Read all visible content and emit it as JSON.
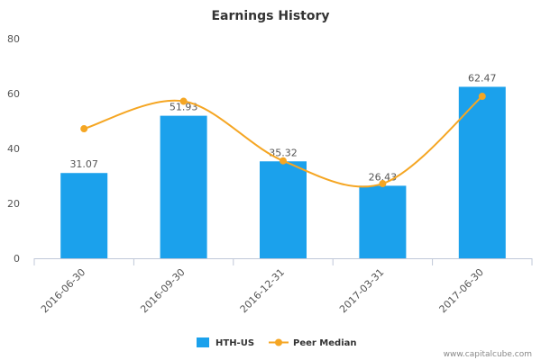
{
  "chart_data": {
    "type": "bar",
    "title": "Earnings History",
    "categories": [
      "2016-06-30",
      "2016-09-30",
      "2016-12-31",
      "2017-03-31",
      "2017-06-30"
    ],
    "series": [
      {
        "name": "HTH-US",
        "kind": "bar",
        "values": [
          31.07,
          51.93,
          35.32,
          26.43,
          62.47
        ],
        "labels": [
          "31.07",
          "51.93",
          "35.32",
          "26.43",
          "62.47"
        ],
        "color": "#1ba1ec"
      },
      {
        "name": "Peer Median",
        "kind": "line",
        "values": [
          47.2,
          57.2,
          35.5,
          27.2,
          59.0
        ],
        "color": "#f5a623"
      }
    ],
    "ylim": [
      0,
      80
    ],
    "yticks": [
      "0",
      "20",
      "40",
      "60",
      "80"
    ],
    "ytick_values": [
      0,
      20,
      40,
      60,
      80
    ],
    "xlabel": "",
    "ylabel": "",
    "legend_position": "bottom-center",
    "grid": false
  },
  "credit": "www.capitalcube.com"
}
